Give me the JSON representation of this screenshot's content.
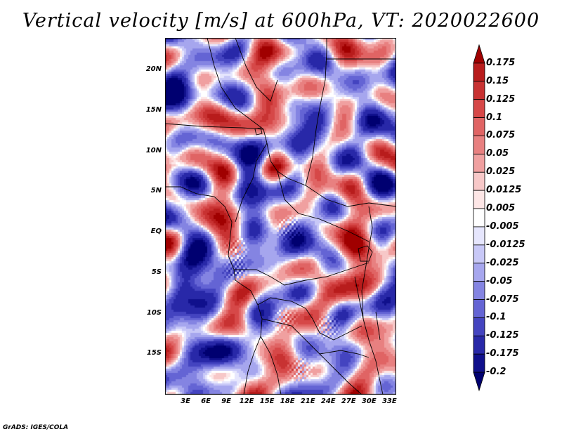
{
  "title": "Vertical velocity [m/s] at 600hPa, VT: 2020022600",
  "credit": "GrADS: IGES/COLA",
  "map": {
    "lat_range": [
      -20,
      24
    ],
    "lon_range": [
      0,
      34
    ],
    "lat_ticks": [
      "20N",
      "15N",
      "10N",
      "5N",
      "EQ",
      "5S",
      "10S",
      "15S"
    ],
    "lon_ticks": [
      "3E",
      "6E",
      "9E",
      "12E",
      "15E",
      "18E",
      "21E",
      "24E",
      "27E",
      "30E",
      "33E"
    ],
    "field": "Vertical velocity",
    "units": "m/s",
    "level": "600hPa"
  },
  "colorbar": {
    "labels": [
      "0.175",
      "0.15",
      "0.125",
      "0.1",
      "0.075",
      "0.05",
      "0.025",
      "0.0125",
      "0.005",
      "-0.005",
      "-0.0125",
      "-0.025",
      "-0.05",
      "-0.075",
      "-0.1",
      "-0.125",
      "-0.175",
      "-0.2"
    ],
    "colors": [
      "#a00000",
      "#b81c1c",
      "#c83232",
      "#d64848",
      "#e06464",
      "#e88080",
      "#f0a0a0",
      "#f7c8c8",
      "#fde6e6",
      "#ffffff",
      "#e6e6fd",
      "#c8c8f7",
      "#a6a6ee",
      "#8484e2",
      "#6464d4",
      "#4444c0",
      "#2828a8",
      "#10108c",
      "#000070"
    ]
  }
}
